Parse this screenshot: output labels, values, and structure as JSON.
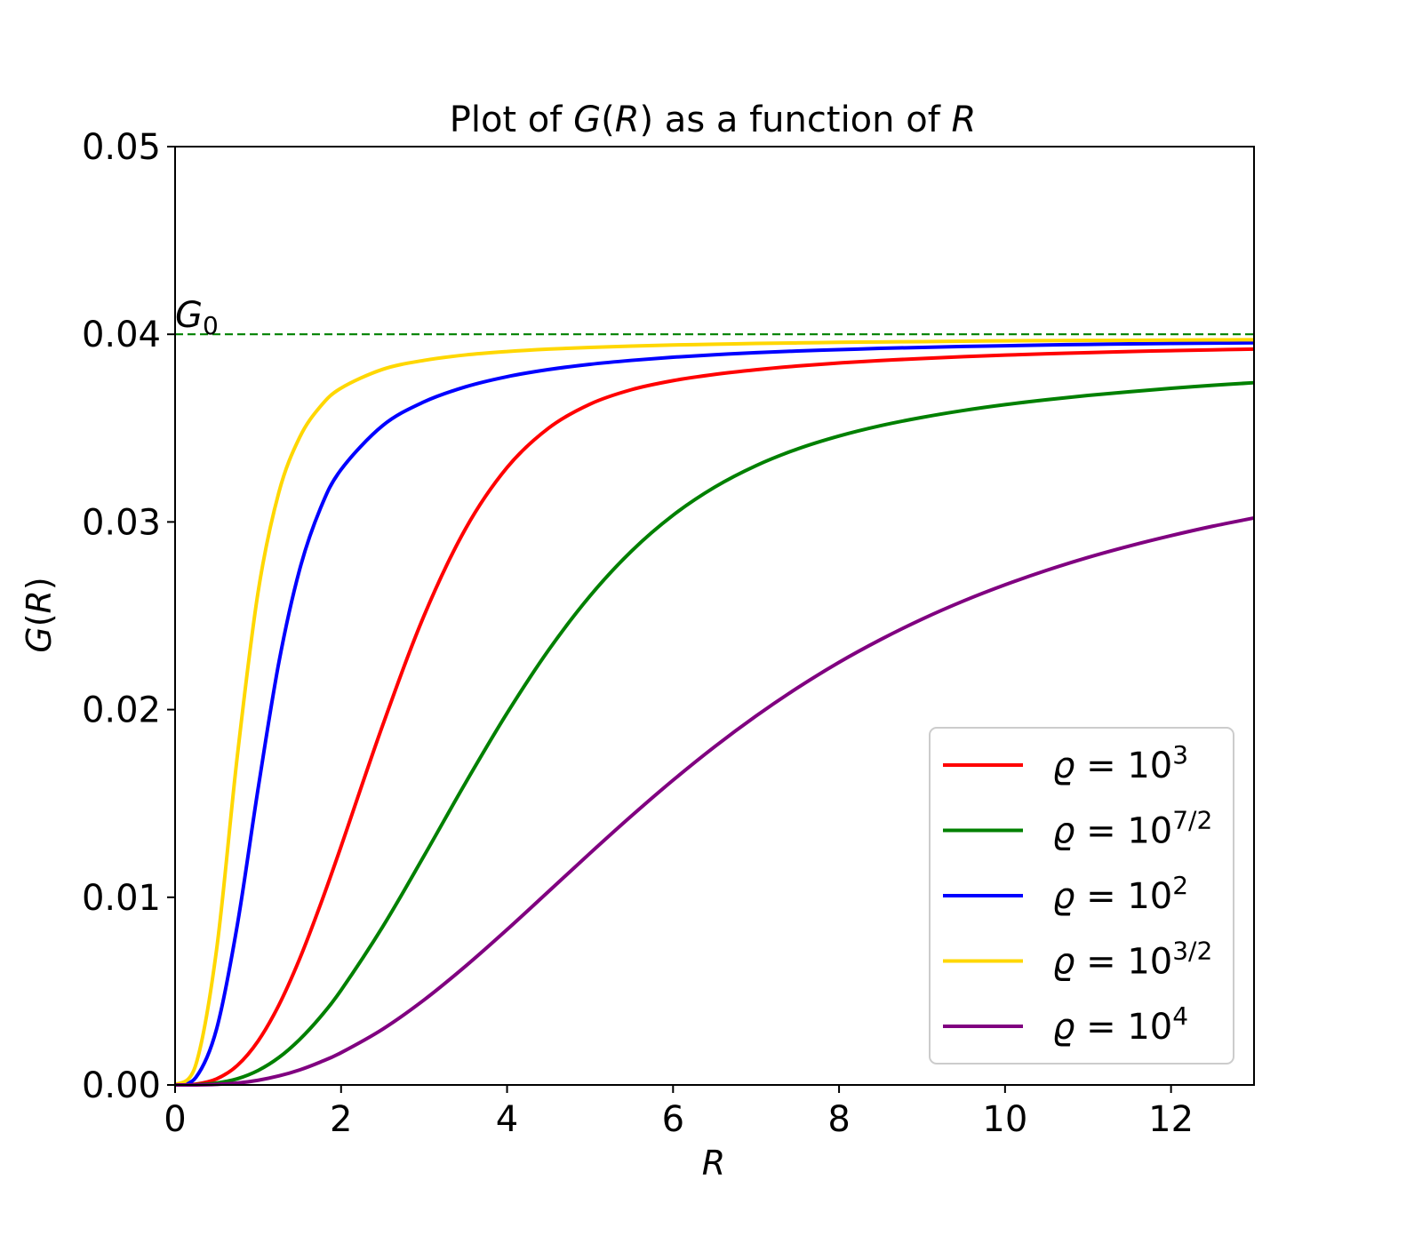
{
  "chart_data": {
    "type": "line",
    "title": "Plot of G(R) as a function of R",
    "title_parts": {
      "pre": "Plot of ",
      "fn": "G",
      "open": "(",
      "arg": "R",
      "close": ")",
      "mid": " as a function of ",
      "var": "R"
    },
    "xlabel": "R",
    "ylabel": "G(R)",
    "ylabel_parts": {
      "fn": "G",
      "open": "(",
      "arg": "R",
      "close": ")"
    },
    "xlim": [
      0,
      13
    ],
    "ylim": [
      0,
      0.05
    ],
    "xticks": [
      0,
      2,
      4,
      6,
      8,
      10,
      12
    ],
    "xtick_labels": [
      "0",
      "2",
      "4",
      "6",
      "8",
      "10",
      "12"
    ],
    "yticks": [
      0,
      0.01,
      0.02,
      0.03,
      0.04,
      0.05
    ],
    "ytick_labels": [
      "0.00",
      "0.01",
      "0.02",
      "0.03",
      "0.04",
      "0.05"
    ],
    "grid": false,
    "legend_position": "lower-right",
    "reference_line": {
      "y": 0.04,
      "label_main": "G",
      "label_sub": "0",
      "color": "#008000",
      "style": "dashed"
    },
    "x": [
      0,
      0.25,
      0.5,
      0.75,
      1,
      1.25,
      1.5,
      1.75,
      2,
      2.5,
      3,
      3.5,
      4,
      4.5,
      5,
      5.5,
      6,
      6.5,
      7,
      7.5,
      8,
      8.5,
      9,
      9.5,
      10,
      10.5,
      11,
      11.5,
      12,
      12.5,
      13
    ],
    "series": [
      {
        "name": "ϱ = 10³",
        "legend_base": "10",
        "legend_exp": "3",
        "color": "#ff0000",
        "values": [
          0,
          4e-05,
          0.00032,
          0.00104,
          0.00234,
          0.00425,
          0.00671,
          0.00959,
          0.01271,
          0.01915,
          0.02501,
          0.02964,
          0.0329,
          0.035,
          0.03628,
          0.03705,
          0.03753,
          0.03786,
          0.03811,
          0.03831,
          0.03847,
          0.0386,
          0.03871,
          0.03881,
          0.03889,
          0.03896,
          0.03902,
          0.03908,
          0.03913,
          0.03917,
          0.03921
        ]
      },
      {
        "name": "ϱ = 10^(7/2)",
        "legend_base": "10",
        "legend_exp": "7/2",
        "color": "#008000",
        "values": [
          0,
          1e-05,
          0.0001,
          0.00033,
          0.00077,
          0.00146,
          0.00242,
          0.00362,
          0.00505,
          0.00842,
          0.01221,
          0.0161,
          0.01981,
          0.02317,
          0.02606,
          0.02845,
          0.03036,
          0.03185,
          0.033,
          0.03389,
          0.03458,
          0.03513,
          0.03557,
          0.03594,
          0.03625,
          0.03651,
          0.03674,
          0.03694,
          0.03712,
          0.03728,
          0.03742
        ]
      },
      {
        "name": "ϱ = 10²",
        "legend_base": "10",
        "legend_exp": "2",
        "color": "#0000ff",
        "values": [
          0,
          0.0004,
          0.00298,
          0.00853,
          0.01578,
          0.0225,
          0.02745,
          0.03071,
          0.03279,
          0.03513,
          0.0364,
          0.0372,
          0.03774,
          0.03812,
          0.0384,
          0.03861,
          0.03878,
          0.03891,
          0.03902,
          0.03911,
          0.03918,
          0.03925,
          0.0393,
          0.03935,
          0.03939,
          0.03943,
          0.03946,
          0.03949,
          0.03951,
          0.03953,
          0.03955
        ]
      },
      {
        "name": "ϱ = 10^(3/2)",
        "legend_base": "10",
        "legend_exp": "3/2",
        "color": "#ffd700",
        "values": [
          0,
          0.00108,
          0.00721,
          0.01753,
          0.02626,
          0.03157,
          0.0345,
          0.03615,
          0.03713,
          0.03813,
          0.03861,
          0.0389,
          0.03908,
          0.03921,
          0.0393,
          0.03937,
          0.03943,
          0.03947,
          0.03951,
          0.03954,
          0.03957,
          0.03959,
          0.03961,
          0.03963,
          0.03965,
          0.03966,
          0.03967,
          0.03968,
          0.03969,
          0.0397,
          0.03971
        ]
      },
      {
        "name": "ϱ = 10⁴",
        "legend_base": "10",
        "legend_exp": "4",
        "color": "#800080",
        "values": [
          0,
          0,
          3e-05,
          0.0001,
          0.00025,
          0.00048,
          0.0008,
          0.00122,
          0.00172,
          0.00297,
          0.00453,
          0.00633,
          0.00828,
          0.01031,
          0.01235,
          0.01434,
          0.01624,
          0.01802,
          0.01966,
          0.02116,
          0.02252,
          0.02373,
          0.02482,
          0.02579,
          0.02665,
          0.02742,
          0.02811,
          0.02872,
          0.02927,
          0.02977,
          0.03021
        ]
      }
    ],
    "legend_order": [
      0,
      1,
      2,
      3,
      4
    ]
  }
}
